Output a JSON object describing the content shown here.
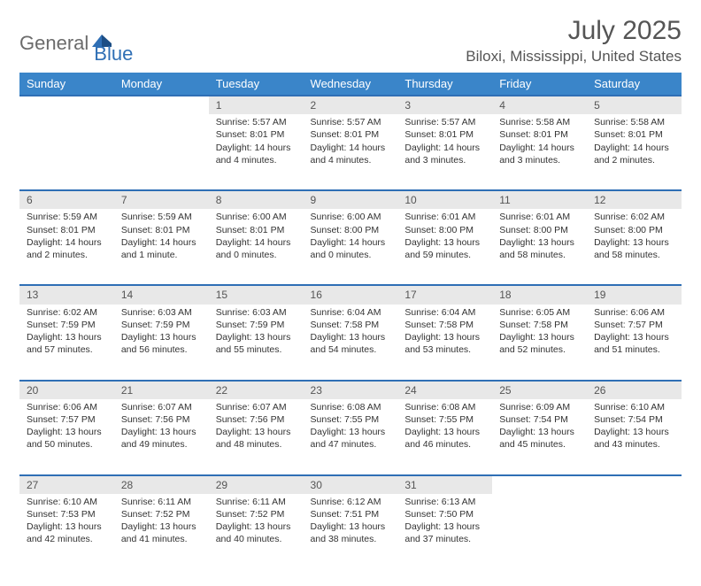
{
  "logo": {
    "text1": "General",
    "text2": "Blue"
  },
  "header": {
    "month": "July 2025",
    "location": "Biloxi, Mississippi, United States"
  },
  "colors": {
    "header_bg": "#3a85c9",
    "header_text": "#ffffff",
    "daynum_bg": "#e8e8e8",
    "rule": "#2f6fb5",
    "text": "#333333",
    "muted": "#555555",
    "logo_gray": "#6b6b6b",
    "logo_blue": "#2f6fb5",
    "page_bg": "#ffffff"
  },
  "day_labels": [
    "Sunday",
    "Monday",
    "Tuesday",
    "Wednesday",
    "Thursday",
    "Friday",
    "Saturday"
  ],
  "weeks": [
    [
      null,
      null,
      {
        "n": "1",
        "sunrise": "5:57 AM",
        "sunset": "8:01 PM",
        "daylight": "14 hours and 4 minutes."
      },
      {
        "n": "2",
        "sunrise": "5:57 AM",
        "sunset": "8:01 PM",
        "daylight": "14 hours and 4 minutes."
      },
      {
        "n": "3",
        "sunrise": "5:57 AM",
        "sunset": "8:01 PM",
        "daylight": "14 hours and 3 minutes."
      },
      {
        "n": "4",
        "sunrise": "5:58 AM",
        "sunset": "8:01 PM",
        "daylight": "14 hours and 3 minutes."
      },
      {
        "n": "5",
        "sunrise": "5:58 AM",
        "sunset": "8:01 PM",
        "daylight": "14 hours and 2 minutes."
      }
    ],
    [
      {
        "n": "6",
        "sunrise": "5:59 AM",
        "sunset": "8:01 PM",
        "daylight": "14 hours and 2 minutes."
      },
      {
        "n": "7",
        "sunrise": "5:59 AM",
        "sunset": "8:01 PM",
        "daylight": "14 hours and 1 minute."
      },
      {
        "n": "8",
        "sunrise": "6:00 AM",
        "sunset": "8:01 PM",
        "daylight": "14 hours and 0 minutes."
      },
      {
        "n": "9",
        "sunrise": "6:00 AM",
        "sunset": "8:00 PM",
        "daylight": "14 hours and 0 minutes."
      },
      {
        "n": "10",
        "sunrise": "6:01 AM",
        "sunset": "8:00 PM",
        "daylight": "13 hours and 59 minutes."
      },
      {
        "n": "11",
        "sunrise": "6:01 AM",
        "sunset": "8:00 PM",
        "daylight": "13 hours and 58 minutes."
      },
      {
        "n": "12",
        "sunrise": "6:02 AM",
        "sunset": "8:00 PM",
        "daylight": "13 hours and 58 minutes."
      }
    ],
    [
      {
        "n": "13",
        "sunrise": "6:02 AM",
        "sunset": "7:59 PM",
        "daylight": "13 hours and 57 minutes."
      },
      {
        "n": "14",
        "sunrise": "6:03 AM",
        "sunset": "7:59 PM",
        "daylight": "13 hours and 56 minutes."
      },
      {
        "n": "15",
        "sunrise": "6:03 AM",
        "sunset": "7:59 PM",
        "daylight": "13 hours and 55 minutes."
      },
      {
        "n": "16",
        "sunrise": "6:04 AM",
        "sunset": "7:58 PM",
        "daylight": "13 hours and 54 minutes."
      },
      {
        "n": "17",
        "sunrise": "6:04 AM",
        "sunset": "7:58 PM",
        "daylight": "13 hours and 53 minutes."
      },
      {
        "n": "18",
        "sunrise": "6:05 AM",
        "sunset": "7:58 PM",
        "daylight": "13 hours and 52 minutes."
      },
      {
        "n": "19",
        "sunrise": "6:06 AM",
        "sunset": "7:57 PM",
        "daylight": "13 hours and 51 minutes."
      }
    ],
    [
      {
        "n": "20",
        "sunrise": "6:06 AM",
        "sunset": "7:57 PM",
        "daylight": "13 hours and 50 minutes."
      },
      {
        "n": "21",
        "sunrise": "6:07 AM",
        "sunset": "7:56 PM",
        "daylight": "13 hours and 49 minutes."
      },
      {
        "n": "22",
        "sunrise": "6:07 AM",
        "sunset": "7:56 PM",
        "daylight": "13 hours and 48 minutes."
      },
      {
        "n": "23",
        "sunrise": "6:08 AM",
        "sunset": "7:55 PM",
        "daylight": "13 hours and 47 minutes."
      },
      {
        "n": "24",
        "sunrise": "6:08 AM",
        "sunset": "7:55 PM",
        "daylight": "13 hours and 46 minutes."
      },
      {
        "n": "25",
        "sunrise": "6:09 AM",
        "sunset": "7:54 PM",
        "daylight": "13 hours and 45 minutes."
      },
      {
        "n": "26",
        "sunrise": "6:10 AM",
        "sunset": "7:54 PM",
        "daylight": "13 hours and 43 minutes."
      }
    ],
    [
      {
        "n": "27",
        "sunrise": "6:10 AM",
        "sunset": "7:53 PM",
        "daylight": "13 hours and 42 minutes."
      },
      {
        "n": "28",
        "sunrise": "6:11 AM",
        "sunset": "7:52 PM",
        "daylight": "13 hours and 41 minutes."
      },
      {
        "n": "29",
        "sunrise": "6:11 AM",
        "sunset": "7:52 PM",
        "daylight": "13 hours and 40 minutes."
      },
      {
        "n": "30",
        "sunrise": "6:12 AM",
        "sunset": "7:51 PM",
        "daylight": "13 hours and 38 minutes."
      },
      {
        "n": "31",
        "sunrise": "6:13 AM",
        "sunset": "7:50 PM",
        "daylight": "13 hours and 37 minutes."
      },
      null,
      null
    ]
  ],
  "labels": {
    "sunrise": "Sunrise:",
    "sunset": "Sunset:",
    "daylight": "Daylight:"
  }
}
